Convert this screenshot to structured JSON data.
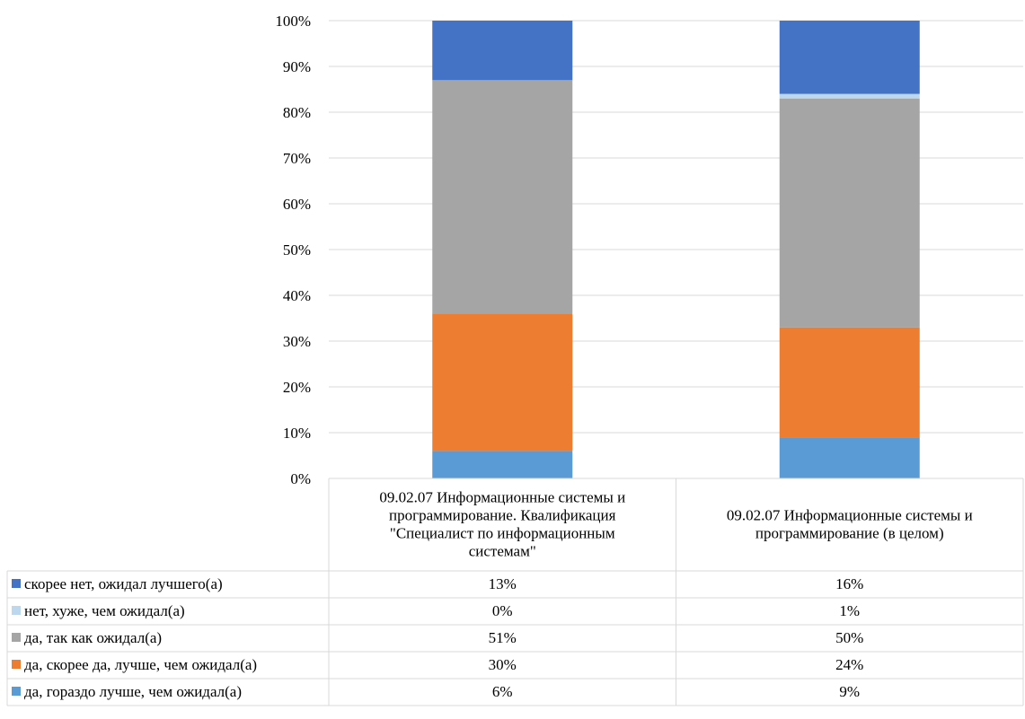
{
  "chart_data": {
    "type": "bar",
    "stacked": true,
    "percent_stacked": true,
    "categories": [
      [
        "09.02.07 Информационные системы и",
        "программирование. Квалификация",
        "\"Специалист по информационным",
        "системам\""
      ],
      [
        "09.02.07 Информационные системы и",
        "программирование (в целом)"
      ]
    ],
    "series": [
      {
        "name": "да, гораздо лучше, чем ожидал(а)",
        "color": "#5b9bd5",
        "values": [
          6,
          9
        ],
        "labels": [
          "6%",
          "9%"
        ]
      },
      {
        "name": "да, скорее да, лучше, чем ожидал(а)",
        "color": "#ed7d31",
        "values": [
          30,
          24
        ],
        "labels": [
          "30%",
          "24%"
        ]
      },
      {
        "name": "да, так как ожидал(а)",
        "color": "#a5a5a5",
        "values": [
          51,
          50
        ],
        "labels": [
          "51%",
          "50%"
        ]
      },
      {
        "name": "нет, хуже, чем ожидал(а)",
        "color": "#bdd7ee",
        "values": [
          0,
          1
        ],
        "labels": [
          "0%",
          "1%"
        ]
      },
      {
        "name": "скорее нет, ожидал лучшего(а)",
        "color": "#4472c4",
        "values": [
          13,
          16
        ],
        "labels": [
          "13%",
          "16%"
        ]
      }
    ],
    "ylim": [
      0,
      100
    ],
    "yticks": [
      "0%",
      "10%",
      "20%",
      "30%",
      "40%",
      "50%",
      "60%",
      "70%",
      "80%",
      "90%",
      "100%"
    ],
    "grid": true,
    "legend": "data-table"
  }
}
